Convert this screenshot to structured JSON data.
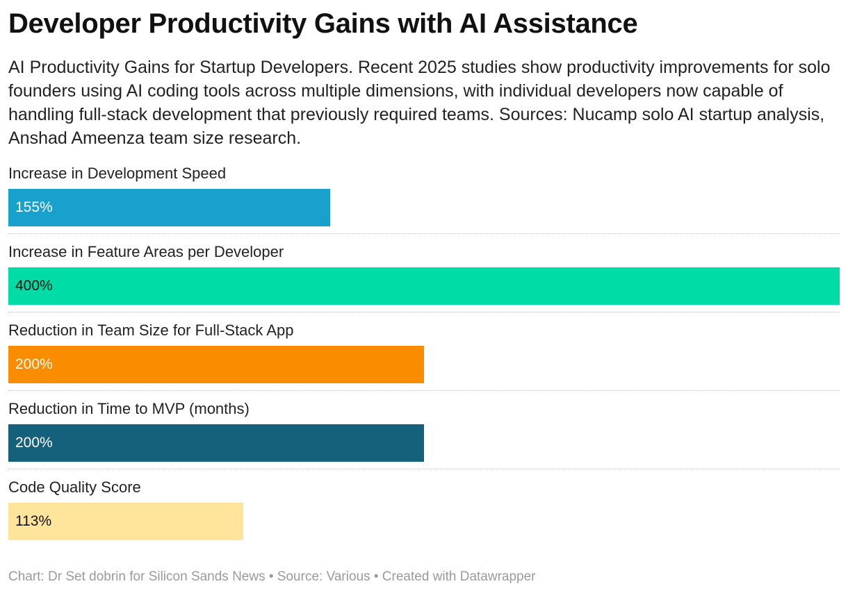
{
  "title": "Developer Productivity Gains with AI Assistance",
  "subtitle": "AI Productivity Gains for Startup Developers. Recent 2025 studies show productivity improvements for solo founders using AI coding tools across multiple dimensions, with individual developers now capable of handling full-stack development that previously required teams. Sources: Nucamp solo AI startup analysis, Anshad Ameenza team size research.",
  "footer": "Chart: Dr Set dobrin for Silicon Sands News • Source: Various • Created with Datawrapper",
  "chart_data": {
    "type": "bar",
    "orientation": "horizontal",
    "categories": [
      "Increase in Development Speed",
      "Increase in Feature Areas per Developer",
      "Reduction in Team Size for Full-Stack App",
      "Reduction in Time to MVP (months)",
      "Code Quality Score"
    ],
    "values": [
      155,
      400,
      200,
      200,
      113
    ],
    "value_labels": [
      "155%",
      "400%",
      "200%",
      "200%",
      "113%"
    ],
    "unit": "%",
    "xlim": [
      0,
      400
    ],
    "colors": [
      "#18a1cd",
      "#00dca6",
      "#fa8c00",
      "#15607a",
      "#ffe59c"
    ],
    "label_colors": [
      "#ffffff",
      "#111111",
      "#ffffff",
      "#ffffff",
      "#111111"
    ],
    "grid": false,
    "legend": "none"
  }
}
